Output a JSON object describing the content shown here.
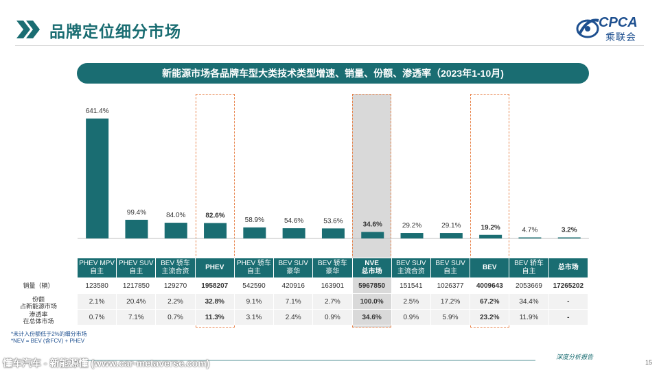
{
  "page": {
    "title": "品牌定位细分市场",
    "page_number": "15",
    "report_label": "深度分析报告"
  },
  "logo": {
    "brand": "CPCA",
    "brand_cn": "乘联会"
  },
  "banner": {
    "title": "新能源市场各品牌车型大类技术类型增速、销量、份额、渗透率（2023年1-10月)"
  },
  "table": {
    "row_labels": {
      "sales": "销量（辆）",
      "share": "份额\n占新能源市场",
      "penetration": "渗透率\n在总体市场"
    },
    "columns": [
      {
        "label": "PHEV MPV\n自主",
        "sales": "123580",
        "share": "2.1%",
        "penetration": "0.7%",
        "emphasis": false
      },
      {
        "label": "PHEV SUV\n自主",
        "sales": "1217850",
        "share": "20.4%",
        "penetration": "7.1%",
        "emphasis": false
      },
      {
        "label": "BEV 轿车\n主流合资",
        "sales": "129270",
        "share": "2.2%",
        "penetration": "0.7%",
        "emphasis": false
      },
      {
        "label": "PHEV",
        "sales": "1958207",
        "share": "32.8%",
        "penetration": "11.3%",
        "emphasis": true
      },
      {
        "label": "PHEV 轿车\n自主",
        "sales": "542590",
        "share": "9.1%",
        "penetration": "3.1%",
        "emphasis": false
      },
      {
        "label": "BEV SUV\n豪华",
        "sales": "420916",
        "share": "7.1%",
        "penetration": "2.4%",
        "emphasis": false
      },
      {
        "label": "BEV 轿车\n豪华",
        "sales": "163901",
        "share": "2.7%",
        "penetration": "0.9%",
        "emphasis": false
      },
      {
        "label": "NVE\n总市场",
        "sales": "5967850",
        "share": "100.0%",
        "penetration": "34.6%",
        "emphasis": true
      },
      {
        "label": "BEV SUV\n主流合资",
        "sales": "151541",
        "share": "2.5%",
        "penetration": "0.9%",
        "emphasis": false
      },
      {
        "label": "BEV SUV\n自主",
        "sales": "1026377",
        "share": "17.2%",
        "penetration": "5.9%",
        "emphasis": false
      },
      {
        "label": "BEV",
        "sales": "4009643",
        "share": "67.2%",
        "penetration": "23.2%",
        "emphasis": true
      },
      {
        "label": "BEV 轿车\n自主",
        "sales": "2053669",
        "share": "34.4%",
        "penetration": "11.9%",
        "emphasis": false
      },
      {
        "label": "总市场",
        "sales": "17265202",
        "share": "-",
        "penetration": "-",
        "emphasis": true
      }
    ]
  },
  "chart_data": {
    "type": "bar",
    "categories": [
      "PHEV MPV 自主",
      "PHEV SUV 自主",
      "BEV 轿车 主流合资",
      "PHEV",
      "PHEV 轿车 自主",
      "BEV SUV 豪华",
      "BEV 轿车 豪华",
      "NVE 总市场",
      "BEV SUV 主流合资",
      "BEV SUV 自主",
      "BEV",
      "BEV 轿车 自主",
      "总市场"
    ],
    "values": [
      641.4,
      99.4,
      84.0,
      82.6,
      58.9,
      54.6,
      53.6,
      34.6,
      29.2,
      29.1,
      19.2,
      4.7,
      3.2
    ],
    "value_labels": [
      "641.4%",
      "99.4%",
      "84.0%",
      "82.6%",
      "58.9%",
      "54.6%",
      "53.6%",
      "34.6%",
      "29.2%",
      "29.1%",
      "19.2%",
      "4.7%",
      "3.2%"
    ],
    "bold_labels": [
      false,
      false,
      false,
      true,
      false,
      false,
      false,
      true,
      false,
      false,
      true,
      false,
      true
    ],
    "bar_color": "#1a6d72",
    "highlighted_columns": [
      "PHEV",
      "NVE 总市场",
      "BEV"
    ],
    "grey_column": "NVE 总市场",
    "ylim": [
      0,
      700
    ],
    "title": "",
    "xlabel": "",
    "ylabel": ""
  },
  "footnotes": [
    "*未计入份额低于2%的细分市场",
    "*NEV = BEV (含FCV) + PHEV"
  ],
  "watermark": "懂车汽车 - 新能源懂 (www.car-metaverse.com)",
  "colors": {
    "accent": "#1a6d72",
    "highlight_border": "#e8834a",
    "brand_blue": "#1d4f8f"
  }
}
